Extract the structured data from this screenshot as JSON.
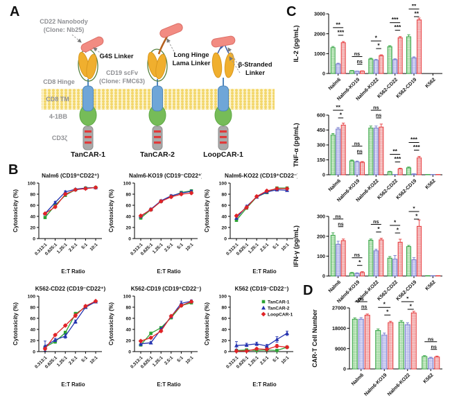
{
  "panel_a": {
    "label": "A",
    "labels": {
      "cd22_nanobody_1": "CD22 Nanobody",
      "cd22_nanobody_2": "(Clone: Nb25)",
      "g4s": "G4S Linker",
      "long_hinge_1": "Long Hinge",
      "long_hinge_2": "Lama Linker",
      "beta_1": "β-Stranded",
      "beta_2": "Linker",
      "cd19_scfv_1": "CD19 scFv",
      "cd19_scfv_2": "(Clone: FMC63)",
      "cd8_hinge": "CD8 Hinge",
      "cd8_tm": "CD8 TM",
      "b41bb": "4-1BB",
      "cd3z": "CD3ζ",
      "construct_1": "TanCAR-1",
      "construct_2": "TanCAR-2",
      "construct_3": "LoopCAR-1"
    },
    "colors": {
      "nanobody": "#F28B82",
      "scfv": "#F0AF2E",
      "tm": "#6FA6D8",
      "costim": "#76BC58",
      "cd3z": "#A9A9A9",
      "stripe": "#E03A3A",
      "membrane": "#F3D76A",
      "g4s_loop": "#55803C",
      "long_hinge_linker": "#B4601E",
      "beta_linker": "#3B5BA5"
    }
  },
  "panel_b": {
    "label": "B"
  },
  "panel_c": {
    "label": "C"
  },
  "panel_d": {
    "label": "D"
  },
  "series_styles": {
    "TanCAR-1": {
      "line_color": "#2BA233",
      "marker": "square",
      "bar_stroke": "#33A342",
      "bar_fill_bg": "#CDEBC9",
      "bar_fill_line": "#6FC578"
    },
    "TanCAR-2": {
      "line_color": "#2534B0",
      "marker": "triangle",
      "bar_stroke": "#7478CC",
      "bar_fill_bg": "#D8D9F4",
      "bar_fill_line": "#989CE0"
    },
    "LoopCAR-1": {
      "line_color": "#E02327",
      "marker": "diamond",
      "bar_stroke": "#E63A3C",
      "bar_fill_bg": "#F6C9CA",
      "bar_fill_line": "#EE8284"
    }
  },
  "chart_data": [
    {
      "id": "b1",
      "type": "line",
      "title": "Nalm6 (CD19⁺CD22⁺)",
      "xlabel": "E:T Ratio",
      "ylabel": "Cytotoxicity (%)",
      "x_categories": [
        "0.313:1",
        "0.625:1",
        "1.25:1",
        "2.5:1",
        "5:1",
        "10:1"
      ],
      "ylim": [
        0,
        100
      ],
      "yticks": [
        0,
        20,
        40,
        60,
        80,
        100
      ],
      "legend": false,
      "series": [
        {
          "name": "TanCAR-1",
          "values": [
            38,
            60,
            78,
            88,
            91,
            92
          ],
          "err": [
            2,
            2,
            2,
            1,
            1,
            1
          ]
        },
        {
          "name": "TanCAR-2",
          "values": [
            45,
            65,
            84,
            89,
            91,
            92
          ],
          "err": [
            2,
            2,
            2,
            1,
            1,
            1
          ]
        },
        {
          "name": "LoopCAR-1",
          "values": [
            45,
            57,
            80,
            88,
            90,
            92
          ],
          "err": [
            2,
            2,
            2,
            1,
            1,
            1
          ]
        }
      ]
    },
    {
      "id": "b2",
      "type": "line",
      "title": "Nalm6-KO19 (CD19⁻CD22⁺)",
      "xlabel": "E:T Ratio",
      "ylabel": "Cytotoxicity (%)",
      "x_categories": [
        "0.313:1",
        "0.625:1",
        "1.25:1",
        "2.5:1",
        "5:1",
        "10:1"
      ],
      "ylim": [
        0,
        100
      ],
      "yticks": [
        0,
        20,
        40,
        60,
        80,
        100
      ],
      "legend": false,
      "series": [
        {
          "name": "TanCAR-1",
          "values": [
            37,
            52,
            67,
            76,
            83,
            86
          ],
          "err": [
            2,
            2,
            2,
            2,
            2,
            2
          ]
        },
        {
          "name": "TanCAR-2",
          "values": [
            40,
            53,
            68,
            77,
            82,
            85
          ],
          "err": [
            2,
            2,
            2,
            2,
            2,
            2
          ]
        },
        {
          "name": "LoopCAR-1",
          "values": [
            41,
            52,
            67,
            75,
            80,
            82
          ],
          "err": [
            2,
            2,
            2,
            2,
            2,
            2
          ]
        }
      ]
    },
    {
      "id": "b3",
      "type": "line",
      "title": "Nalm6-KO22 (CD19⁺CD22⁻)",
      "xlabel": "E:T Ratio",
      "ylabel": "Cytotoxicity (%)",
      "x_categories": [
        "0.313:1",
        "0.625:1",
        "1.25:1",
        "2.5:1",
        "5:1",
        "10:1"
      ],
      "ylim": [
        0,
        100
      ],
      "yticks": [
        0,
        20,
        40,
        60,
        80,
        100
      ],
      "legend": false,
      "series": [
        {
          "name": "TanCAR-1",
          "values": [
            33,
            55,
            75,
            83,
            91,
            91
          ],
          "err": [
            2,
            2,
            2,
            2,
            1,
            1
          ]
        },
        {
          "name": "TanCAR-2",
          "values": [
            37,
            58,
            75,
            84,
            88,
            87
          ],
          "err": [
            2,
            2,
            2,
            2,
            1,
            1
          ]
        },
        {
          "name": "LoopCAR-1",
          "values": [
            41,
            56,
            76,
            86,
            90,
            90
          ],
          "err": [
            2,
            2,
            2,
            2,
            1,
            1
          ]
        }
      ]
    },
    {
      "id": "b4",
      "type": "line",
      "title": "K562-CD22 (CD19⁻CD22⁺)",
      "xlabel": "E:T Ratio",
      "ylabel": "Cytotoxicity (%)",
      "x_categories": [
        "0.313:1",
        "0.625:1",
        "1.25:1",
        "2.5:1",
        "5:1",
        "10:1"
      ],
      "ylim": [
        0,
        100
      ],
      "yticks": [
        0,
        20,
        40,
        60,
        80,
        100
      ],
      "legend": false,
      "series": [
        {
          "name": "TanCAR-1",
          "values": [
            8,
            18,
            34,
            68,
            80,
            90
          ],
          "err": [
            2,
            3,
            3,
            3,
            2,
            1
          ]
        },
        {
          "name": "TanCAR-2",
          "values": [
            10,
            21,
            28,
            54,
            80,
            90
          ],
          "err": [
            9,
            3,
            4,
            3,
            2,
            1
          ]
        },
        {
          "name": "LoopCAR-1",
          "values": [
            5,
            30,
            47,
            65,
            82,
            91
          ],
          "err": [
            2,
            2,
            2,
            3,
            2,
            1
          ]
        }
      ]
    },
    {
      "id": "b5",
      "type": "line",
      "title": "K562-CD19 (CD19⁺CD22⁻)",
      "xlabel": "E:T Ratio",
      "ylabel": "Cytotoxicity (%)",
      "x_categories": [
        "0.313:1",
        "0.625:1",
        "1.25:1",
        "2.5:1",
        "5:1",
        "10:1"
      ],
      "ylim": [
        0,
        100
      ],
      "yticks": [
        0,
        20,
        40,
        60,
        80,
        100
      ],
      "legend": false,
      "series": [
        {
          "name": "TanCAR-1",
          "values": [
            12,
            33,
            43,
            61,
            83,
            88
          ],
          "err": [
            2,
            2,
            2,
            2,
            2,
            2
          ]
        },
        {
          "name": "TanCAR-2",
          "values": [
            14,
            16,
            40,
            63,
            87,
            91
          ],
          "err": [
            3,
            2,
            3,
            2,
            4,
            2
          ]
        },
        {
          "name": "LoopCAR-1",
          "values": [
            19,
            25,
            37,
            64,
            83,
            90
          ],
          "err": [
            2,
            2,
            2,
            2,
            2,
            2
          ]
        }
      ]
    },
    {
      "id": "b6",
      "type": "line",
      "title": "K562 (CD19⁻CD22⁻)",
      "xlabel": "E:T Ratio",
      "ylabel": "Cytotoxicity (%)",
      "x_categories": [
        "0.313:1",
        "0.625:1",
        "1.25:1",
        "2.5:1",
        "5:1",
        "10:1"
      ],
      "ylim": [
        0,
        100
      ],
      "yticks": [
        0,
        20,
        40,
        60,
        80,
        100
      ],
      "legend": true,
      "series": [
        {
          "name": "TanCAR-1",
          "values": [
            2,
            3,
            2,
            3,
            2,
            8
          ],
          "err": [
            2,
            1,
            1,
            2,
            1,
            2
          ]
        },
        {
          "name": "TanCAR-2",
          "values": [
            11,
            12,
            14,
            10,
            22,
            33
          ],
          "err": [
            7,
            3,
            3,
            3,
            5,
            4
          ]
        },
        {
          "name": "LoopCAR-1",
          "values": [
            1,
            1,
            5,
            4,
            10,
            8
          ],
          "err": [
            2,
            1,
            2,
            2,
            3,
            2
          ]
        }
      ]
    },
    {
      "id": "c1",
      "type": "bar",
      "ylabel": "IL-2 (pg/mL)",
      "ylim": [
        0,
        3000
      ],
      "yticks": [
        0,
        1000,
        2000,
        3000
      ],
      "categories": [
        "Nalm6",
        "Nalm6-KO19",
        "Nalm6-KO22",
        "K562-CD22",
        "K562-CD19",
        "K562"
      ],
      "series": [
        {
          "name": "TanCAR-1",
          "values": [
            1300,
            140,
            730,
            1350,
            1850,
            8
          ],
          "err": [
            60,
            15,
            40,
            50,
            100,
            0
          ]
        },
        {
          "name": "TanCAR-2",
          "values": [
            480,
            115,
            670,
            700,
            790,
            8
          ],
          "err": [
            40,
            10,
            40,
            40,
            50,
            0
          ]
        },
        {
          "name": "LoopCAR-1",
          "values": [
            1550,
            120,
            900,
            1800,
            2700,
            8
          ],
          "err": [
            60,
            15,
            40,
            60,
            90,
            0
          ]
        }
      ],
      "sig": [
        {
          "group": 0,
          "upper": "**",
          "lower": "***"
        },
        {
          "group": 1,
          "upper": "ns",
          "lower": "ns"
        },
        {
          "group": 2,
          "upper": "*",
          "lower": "*"
        },
        {
          "group": 3,
          "upper": "***",
          "lower": "***"
        },
        {
          "group": 4,
          "upper": "**",
          "lower": "**"
        }
      ]
    },
    {
      "id": "c2",
      "type": "bar",
      "ylabel": "TNF-α (pg/mL)",
      "ylim": [
        0,
        600
      ],
      "yticks": [
        0,
        150,
        300,
        450,
        600
      ],
      "categories": [
        "Nalm6",
        "Nalm6-KO19",
        "Nalm6-KO22",
        "K562-CD22",
        "K562-CD19",
        "K562"
      ],
      "series": [
        {
          "name": "TanCAR-1",
          "values": [
            400,
            140,
            470,
            30,
            70,
            3
          ],
          "err": [
            15,
            8,
            20,
            4,
            8,
            0
          ]
        },
        {
          "name": "TanCAR-2",
          "values": [
            460,
            130,
            470,
            3,
            8,
            3
          ],
          "err": [
            15,
            8,
            20,
            0,
            2,
            0
          ]
        },
        {
          "name": "LoopCAR-1",
          "values": [
            500,
            125,
            480,
            60,
            170,
            3
          ],
          "err": [
            20,
            8,
            30,
            6,
            15,
            0
          ]
        }
      ],
      "sig": [
        {
          "group": 0,
          "upper": "**",
          "lower": "*"
        },
        {
          "group": 1,
          "upper": "ns",
          "lower": "ns"
        },
        {
          "group": 2,
          "upper": "ns",
          "lower": "ns"
        },
        {
          "group": 3,
          "upper": "**",
          "lower": "***"
        },
        {
          "group": 4,
          "upper": "***",
          "lower": "***"
        }
      ]
    },
    {
      "id": "c3",
      "type": "bar",
      "ylabel": "IFN-γ (pg/mL)",
      "ylim": [
        0,
        300
      ],
      "yticks": [
        0,
        100,
        200,
        300
      ],
      "categories": [
        "Nalm6",
        "Nalm6-KO19",
        "Nalm6-KO22",
        "K562-CD22",
        "K562-CD19",
        "K562"
      ],
      "series": [
        {
          "name": "TanCAR-1",
          "values": [
            205,
            15,
            180,
            90,
            148,
            2
          ],
          "err": [
            12,
            3,
            6,
            8,
            6,
            0
          ]
        },
        {
          "name": "TanCAR-2",
          "values": [
            160,
            13,
            127,
            85,
            82,
            2
          ],
          "err": [
            15,
            3,
            8,
            18,
            10,
            0
          ]
        },
        {
          "name": "LoopCAR-1",
          "values": [
            178,
            18,
            182,
            170,
            250,
            2
          ],
          "err": [
            8,
            4,
            8,
            15,
            32,
            0
          ]
        }
      ],
      "sig": [
        {
          "group": 0,
          "upper": "ns",
          "lower": "ns"
        },
        {
          "group": 1,
          "upper": "ns",
          "lower": "*"
        },
        {
          "group": 2,
          "upper": "ns",
          "lower": "*"
        },
        {
          "group": 3,
          "upper": "*",
          "lower": "*"
        },
        {
          "group": 4,
          "upper": "*",
          "lower": "*"
        }
      ]
    },
    {
      "id": "d1",
      "type": "bar",
      "ylabel": "CAR-T Cell Number",
      "ylim": [
        0,
        27000
      ],
      "yticks": [
        0,
        9000,
        18000,
        27000
      ],
      "categories": [
        "Nalm6",
        "Nalm6-KO19",
        "Nalm6-KO22",
        "K562"
      ],
      "series": [
        {
          "name": "TanCAR-1",
          "values": [
            22000,
            17000,
            20700,
            5500
          ],
          "err": [
            600,
            700,
            700,
            400
          ]
        },
        {
          "name": "TanCAR-2",
          "values": [
            22000,
            15000,
            19600,
            4800
          ],
          "err": [
            700,
            900,
            800,
            400
          ]
        },
        {
          "name": "LoopCAR-1",
          "values": [
            23800,
            20500,
            24800,
            5300
          ],
          "err": [
            500,
            600,
            700,
            400
          ]
        }
      ],
      "sig": [
        {
          "group": 0,
          "upper": "ns",
          "lower": "ns"
        },
        {
          "group": 1,
          "upper": "*",
          "lower": "*"
        },
        {
          "group": 2,
          "upper": "*",
          "lower": "*"
        },
        {
          "group": 3,
          "upper": "ns",
          "lower": "ns"
        }
      ]
    }
  ]
}
